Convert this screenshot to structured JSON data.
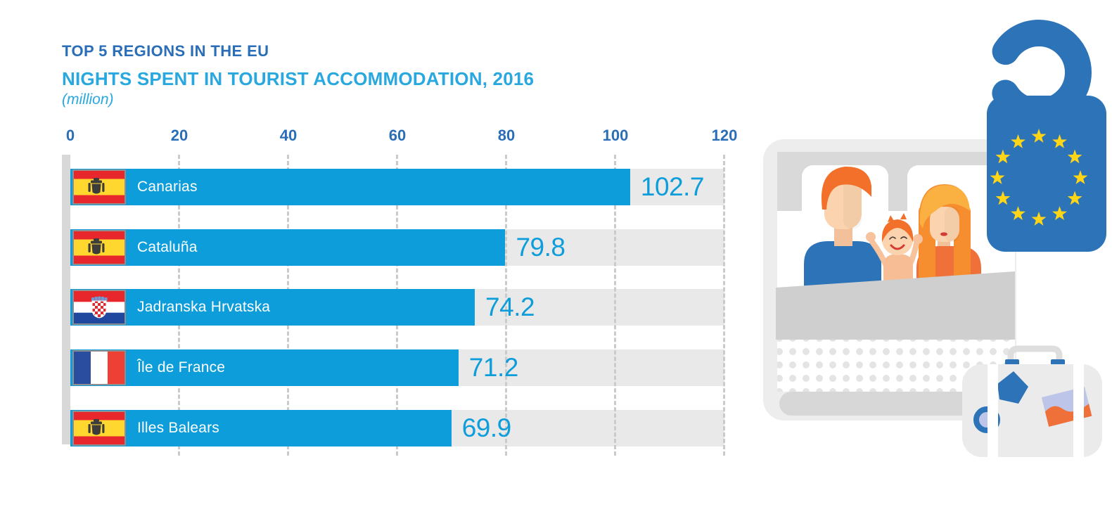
{
  "header": {
    "title": "TOP 5 REGIONS IN THE EU",
    "subtitle": "NIGHTS SPENT IN TOURIST ACCOMMODATION, 2016",
    "unit_note": "(million)"
  },
  "chart_data": {
    "type": "bar",
    "orientation": "horizontal",
    "title": "TOP 5 REGIONS IN THE EU",
    "subtitle": "NIGHTS SPENT IN TOURIST ACCOMMODATION, 2016",
    "unit": "million",
    "categories": [
      "Canarias",
      "Cataluña",
      "Jadranska Hrvatska",
      "Île de France",
      "Illes Balears"
    ],
    "values": [
      102.7,
      79.8,
      74.2,
      71.2,
      69.9
    ],
    "countries": [
      "Spain",
      "Spain",
      "Croatia",
      "France",
      "Spain"
    ],
    "xlim": [
      0,
      120
    ],
    "x_tick_labels": [
      "0",
      "20",
      "40",
      "60",
      "80",
      "100",
      "120"
    ],
    "grid": "dashed vertical gridlines at each tick",
    "legend": "none",
    "rows": [
      {
        "label": "Canarias",
        "value": "102.7",
        "flag": "spain-flag"
      },
      {
        "label": "Cataluña",
        "value": "79.8",
        "flag": "spain-flag"
      },
      {
        "label": "Jadranska Hrvatska",
        "value": "74.2",
        "flag": "croatia-flag"
      },
      {
        "label": "Île de France",
        "value": "71.2",
        "flag": "france-flag"
      },
      {
        "label": "Illes Balears",
        "value": "69.9",
        "flag": "spain-flag"
      }
    ]
  },
  "colors": {
    "bar_blue": "#0D9DDB",
    "track_gray": "#E9E9E9",
    "title_dark_blue": "#2B6EB8",
    "subtitle_light_blue": "#29A8E0",
    "eu_blue": "#2C73B8",
    "eu_star_yellow": "#FFD617",
    "accent_orange": "#F0703A",
    "hair_orange": "#F3702A"
  },
  "illustration": {
    "icons": [
      "eu-door-hanger-icon",
      "family-in-bed-icon",
      "father-figure",
      "mother-figure",
      "child-figure",
      "pillow",
      "blanket",
      "suitcase-icon"
    ]
  }
}
